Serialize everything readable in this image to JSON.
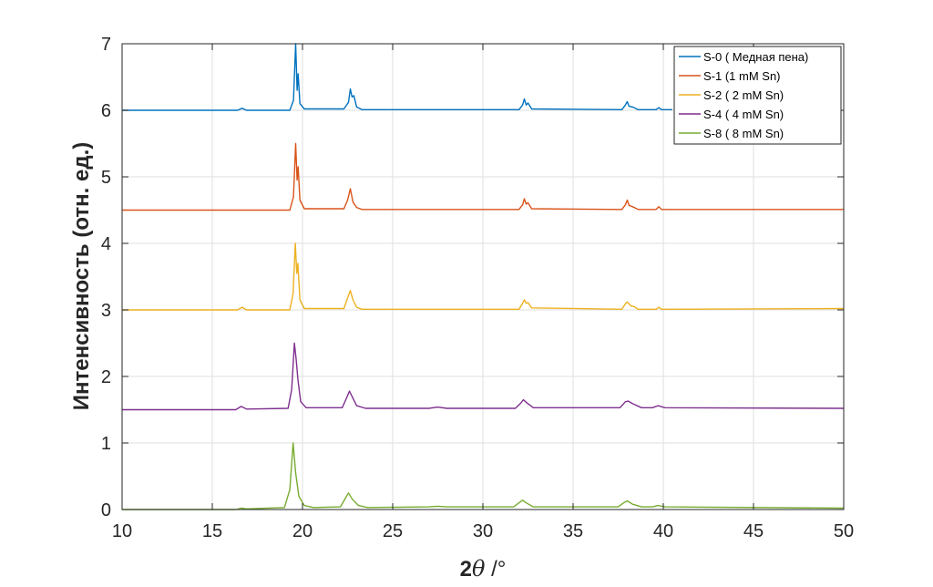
{
  "chart_data": {
    "type": "line",
    "xlabel_main": "2",
    "xlabel_theta": "θ",
    "xlabel_unit": " /°",
    "ylabel": "Интенсивность (отн. ед.)",
    "xlim": [
      10,
      50
    ],
    "ylim": [
      0,
      7
    ],
    "xticks": [
      "10",
      "15",
      "20",
      "25",
      "30",
      "35",
      "40",
      "45",
      "50"
    ],
    "yticks": [
      "0",
      "1",
      "2",
      "3",
      "4",
      "5",
      "6",
      "7"
    ],
    "grid": true,
    "legend_position": "top-right",
    "series": [
      {
        "name": "S-0 ( Медная пена)",
        "color": "#0072BD",
        "baseline": 6.0,
        "points": [
          [
            10,
            6.0
          ],
          [
            16.4,
            6.0
          ],
          [
            16.65,
            6.03
          ],
          [
            16.9,
            6.0
          ],
          [
            19.3,
            6.0
          ],
          [
            19.5,
            6.15
          ],
          [
            19.62,
            7.0
          ],
          [
            19.7,
            6.3
          ],
          [
            19.76,
            6.55
          ],
          [
            19.86,
            6.1
          ],
          [
            20.1,
            6.02
          ],
          [
            22.3,
            6.02
          ],
          [
            22.55,
            6.12
          ],
          [
            22.65,
            6.32
          ],
          [
            22.75,
            6.2
          ],
          [
            22.85,
            6.22
          ],
          [
            23.0,
            6.05
          ],
          [
            23.3,
            6.01
          ],
          [
            32.0,
            6.01
          ],
          [
            32.2,
            6.08
          ],
          [
            32.3,
            6.17
          ],
          [
            32.4,
            6.08
          ],
          [
            32.5,
            6.11
          ],
          [
            32.7,
            6.02
          ],
          [
            37.7,
            6.01
          ],
          [
            37.9,
            6.08
          ],
          [
            38.0,
            6.13
          ],
          [
            38.1,
            6.06
          ],
          [
            38.3,
            6.05
          ],
          [
            38.6,
            6.01
          ],
          [
            39.6,
            6.01
          ],
          [
            39.75,
            6.04
          ],
          [
            39.9,
            6.01
          ],
          [
            40.5,
            6.01
          ]
        ]
      },
      {
        "name": "S-1 (1 mM Sn)",
        "color": "#D95319",
        "baseline": 4.5,
        "points": [
          [
            10,
            4.5
          ],
          [
            19.3,
            4.5
          ],
          [
            19.5,
            4.7
          ],
          [
            19.62,
            5.5
          ],
          [
            19.7,
            4.95
          ],
          [
            19.76,
            5.15
          ],
          [
            19.86,
            4.65
          ],
          [
            20.1,
            4.52
          ],
          [
            22.3,
            4.52
          ],
          [
            22.5,
            4.65
          ],
          [
            22.65,
            4.82
          ],
          [
            22.8,
            4.62
          ],
          [
            23.0,
            4.54
          ],
          [
            23.3,
            4.51
          ],
          [
            32.0,
            4.51
          ],
          [
            32.2,
            4.58
          ],
          [
            32.3,
            4.67
          ],
          [
            32.4,
            4.59
          ],
          [
            32.5,
            4.61
          ],
          [
            32.7,
            4.52
          ],
          [
            37.7,
            4.51
          ],
          [
            37.9,
            4.58
          ],
          [
            38.0,
            4.65
          ],
          [
            38.1,
            4.57
          ],
          [
            38.3,
            4.55
          ],
          [
            38.6,
            4.51
          ],
          [
            39.6,
            4.51
          ],
          [
            39.75,
            4.55
          ],
          [
            39.9,
            4.51
          ],
          [
            50,
            4.51
          ]
        ]
      },
      {
        "name": "S-2 ( 2 mM Sn)",
        "color": "#EDB120",
        "baseline": 3.0,
        "points": [
          [
            10,
            3.0
          ],
          [
            16.4,
            3.0
          ],
          [
            16.65,
            3.04
          ],
          [
            16.9,
            3.0
          ],
          [
            19.3,
            3.0
          ],
          [
            19.48,
            3.25
          ],
          [
            19.6,
            4.0
          ],
          [
            19.68,
            3.55
          ],
          [
            19.74,
            3.7
          ],
          [
            19.86,
            3.15
          ],
          [
            20.1,
            3.02
          ],
          [
            22.3,
            3.02
          ],
          [
            22.5,
            3.18
          ],
          [
            22.65,
            3.29
          ],
          [
            22.8,
            3.15
          ],
          [
            23.0,
            3.04
          ],
          [
            23.3,
            3.01
          ],
          [
            32.0,
            3.01
          ],
          [
            32.2,
            3.1
          ],
          [
            32.3,
            3.15
          ],
          [
            32.4,
            3.1
          ],
          [
            32.5,
            3.11
          ],
          [
            32.7,
            3.03
          ],
          [
            37.7,
            3.01
          ],
          [
            37.9,
            3.09
          ],
          [
            38.0,
            3.12
          ],
          [
            38.2,
            3.06
          ],
          [
            38.4,
            3.05
          ],
          [
            38.6,
            3.01
          ],
          [
            39.6,
            3.01
          ],
          [
            39.75,
            3.04
          ],
          [
            39.9,
            3.01
          ],
          [
            50,
            3.02
          ]
        ]
      },
      {
        "name": "S-4 ( 4 mM Sn)",
        "color": "#7E2F8E",
        "baseline": 1.5,
        "points": [
          [
            10,
            1.5
          ],
          [
            16.3,
            1.5
          ],
          [
            16.6,
            1.55
          ],
          [
            16.9,
            1.51
          ],
          [
            19.2,
            1.52
          ],
          [
            19.4,
            1.8
          ],
          [
            19.55,
            2.5
          ],
          [
            19.65,
            2.25
          ],
          [
            19.75,
            1.95
          ],
          [
            19.9,
            1.62
          ],
          [
            20.2,
            1.53
          ],
          [
            22.2,
            1.53
          ],
          [
            22.45,
            1.68
          ],
          [
            22.6,
            1.78
          ],
          [
            22.75,
            1.7
          ],
          [
            23.0,
            1.56
          ],
          [
            23.5,
            1.52
          ],
          [
            27.0,
            1.52
          ],
          [
            27.5,
            1.54
          ],
          [
            28.0,
            1.52
          ],
          [
            31.8,
            1.52
          ],
          [
            32.1,
            1.6
          ],
          [
            32.25,
            1.65
          ],
          [
            32.45,
            1.6
          ],
          [
            32.8,
            1.53
          ],
          [
            37.6,
            1.53
          ],
          [
            37.9,
            1.62
          ],
          [
            38.05,
            1.63
          ],
          [
            38.3,
            1.59
          ],
          [
            38.8,
            1.53
          ],
          [
            39.4,
            1.53
          ],
          [
            39.7,
            1.56
          ],
          [
            40.1,
            1.53
          ],
          [
            50,
            1.52
          ]
        ]
      },
      {
        "name": "S-8 ( 8 mM Sn)",
        "color": "#77AC30",
        "baseline": 0.0,
        "points": [
          [
            10,
            0.0
          ],
          [
            16.3,
            0.0
          ],
          [
            16.6,
            0.02
          ],
          [
            16.9,
            0.01
          ],
          [
            19.0,
            0.03
          ],
          [
            19.3,
            0.3
          ],
          [
            19.48,
            1.0
          ],
          [
            19.62,
            0.55
          ],
          [
            19.8,
            0.2
          ],
          [
            20.1,
            0.06
          ],
          [
            20.6,
            0.03
          ],
          [
            22.1,
            0.04
          ],
          [
            22.4,
            0.18
          ],
          [
            22.55,
            0.25
          ],
          [
            22.75,
            0.16
          ],
          [
            23.1,
            0.06
          ],
          [
            23.6,
            0.03
          ],
          [
            27.0,
            0.04
          ],
          [
            27.5,
            0.05
          ],
          [
            28.0,
            0.04
          ],
          [
            31.7,
            0.04
          ],
          [
            32.0,
            0.1
          ],
          [
            32.2,
            0.14
          ],
          [
            32.4,
            0.1
          ],
          [
            32.8,
            0.04
          ],
          [
            37.5,
            0.04
          ],
          [
            37.8,
            0.1
          ],
          [
            38.0,
            0.13
          ],
          [
            38.3,
            0.08
          ],
          [
            38.8,
            0.04
          ],
          [
            39.4,
            0.04
          ],
          [
            39.7,
            0.06
          ],
          [
            40.1,
            0.04
          ],
          [
            50,
            0.02
          ]
        ]
      }
    ]
  }
}
